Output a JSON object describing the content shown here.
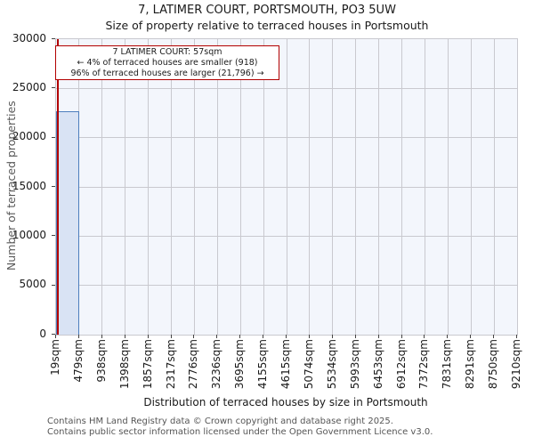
{
  "chart_data": {
    "type": "bar",
    "title": "7, LATIMER COURT, PORTSMOUTH, PO3 5UW",
    "subtitle": "Size of property relative to terraced houses in Portsmouth",
    "xlabel": "Distribution of terraced houses by size in Portsmouth",
    "ylabel": "Number of terraced properties",
    "x_tick_labels": [
      "19sqm",
      "479sqm",
      "938sqm",
      "1398sqm",
      "1857sqm",
      "2317sqm",
      "2776sqm",
      "3236sqm",
      "3695sqm",
      "4155sqm",
      "4615sqm",
      "5074sqm",
      "5534sqm",
      "5993sqm",
      "6453sqm",
      "6912sqm",
      "7372sqm",
      "7831sqm",
      "8291sqm",
      "8750sqm",
      "9210sqm"
    ],
    "x_range_sqm": [
      19,
      9210
    ],
    "y_ticks": [
      0,
      5000,
      10000,
      15000,
      20000,
      25000,
      30000
    ],
    "ylim": [
      0,
      30000
    ],
    "grid": true,
    "legend": false,
    "bars": [
      {
        "bin_start_sqm": 19,
        "bin_end_sqm": 479,
        "value": 22700
      }
    ],
    "marker_sqm": 57,
    "annotation": {
      "line1": "7 LATIMER COURT: 57sqm",
      "line2": "← 4% of terraced houses are smaller (918)",
      "line3": "96% of terraced houses are larger (21,796) →"
    },
    "colors": {
      "bar_fill": "#d9e3f4",
      "bar_border": "#4d7ebd",
      "marker_line": "#b20000",
      "annotation_border": "#b20000",
      "plot_bg": "#f3f6fc",
      "grid_line": "#c9c9cf"
    }
  },
  "footer": {
    "line1": "Contains HM Land Registry data © Crown copyright and database right 2025.",
    "line2": "Contains public sector information licensed under the Open Government Licence v3.0."
  }
}
